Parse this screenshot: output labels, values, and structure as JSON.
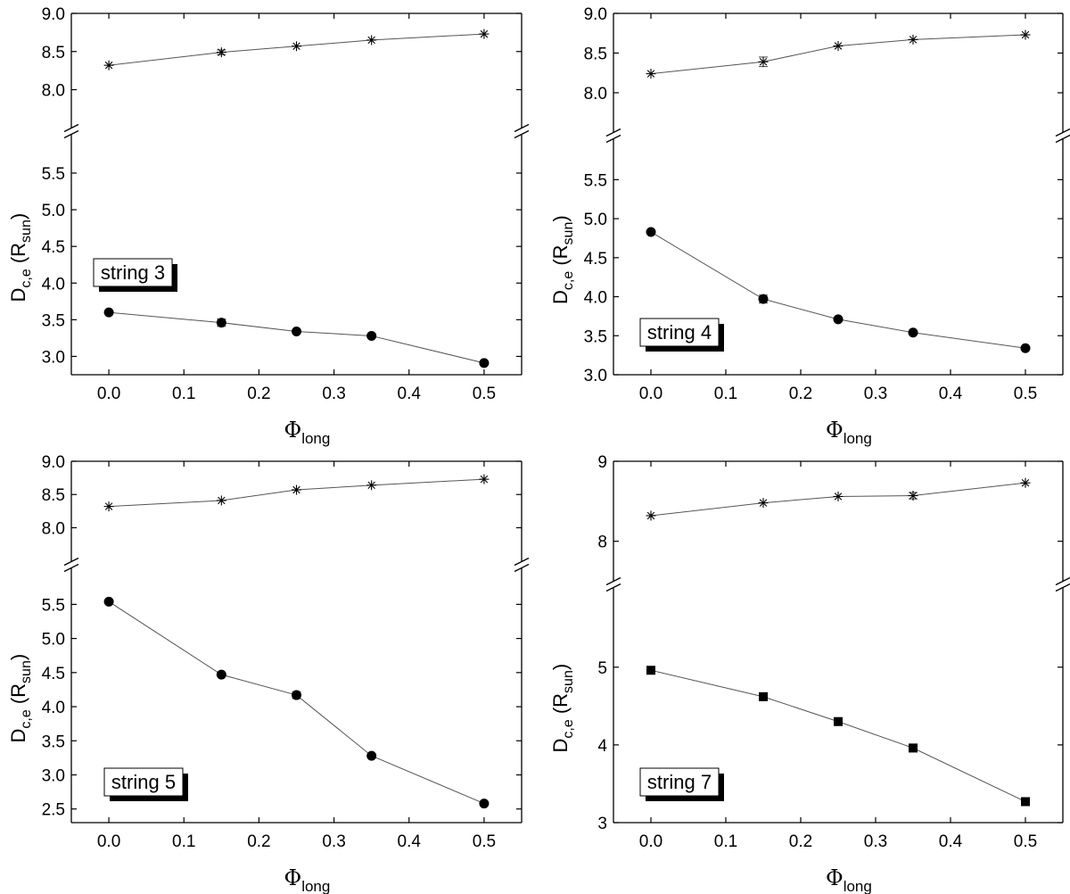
{
  "chart_data": [
    {
      "type": "line",
      "panel_label": "string 3",
      "xlabel_symbol": "Φ",
      "xlabel_sub": "long",
      "ylabel_main": "D",
      "ylabel_sub": "c,e",
      "ylabel_unit_open": " (R",
      "ylabel_unit_sub": "sun",
      "ylabel_unit_close": ")",
      "xlim": [
        -0.05,
        0.55
      ],
      "x_ticks": [
        "0.0",
        "0.1",
        "0.2",
        "0.3",
        "0.4",
        "0.5"
      ],
      "axis_break": true,
      "y_upper": {
        "ylim": [
          7.55,
          9.0
        ],
        "ticks": [
          "8.0",
          "8.5",
          "9.0"
        ]
      },
      "y_lower": {
        "ylim": [
          2.75,
          5.95
        ],
        "ticks": [
          "3.0",
          "3.5",
          "4.0",
          "4.5",
          "5.0",
          "5.5"
        ]
      },
      "x": [
        0.0,
        0.15,
        0.25,
        0.35,
        0.5
      ],
      "series": [
        {
          "marker": "star",
          "values": [
            8.32,
            8.49,
            8.57,
            8.65,
            8.73
          ],
          "errors": [
            0,
            0.03,
            0,
            0,
            0
          ]
        },
        {
          "marker": "circle",
          "values": [
            3.6,
            3.46,
            3.34,
            3.28,
            2.91
          ],
          "errors": [
            0,
            0.05,
            0,
            0,
            0
          ]
        }
      ]
    },
    {
      "type": "line",
      "panel_label": "string 4",
      "xlabel_symbol": "Φ",
      "xlabel_sub": "long",
      "ylabel_main": "D",
      "ylabel_sub": "c,e",
      "ylabel_unit_open": " (R",
      "ylabel_unit_sub": "sun",
      "ylabel_unit_close": ")",
      "xlim": [
        -0.05,
        0.55
      ],
      "x_ticks": [
        "0.0",
        "0.1",
        "0.2",
        "0.3",
        "0.4",
        "0.5"
      ],
      "axis_break": true,
      "y_upper": {
        "ylim": [
          7.55,
          9.0
        ],
        "ticks": [
          "8.0",
          "8.5",
          "9.0"
        ]
      },
      "y_lower": {
        "ylim": [
          3.0,
          5.95
        ],
        "ticks": [
          "3.0",
          "3.5",
          "4.0",
          "4.5",
          "5.0",
          "5.5"
        ]
      },
      "x": [
        0.0,
        0.15,
        0.25,
        0.35,
        0.5
      ],
      "series": [
        {
          "marker": "star",
          "values": [
            8.24,
            8.39,
            8.59,
            8.67,
            8.73
          ],
          "errors": [
            0,
            0.06,
            0,
            0,
            0
          ]
        },
        {
          "marker": "circle",
          "values": [
            4.83,
            3.97,
            3.71,
            3.54,
            3.34
          ],
          "errors": [
            0,
            0.05,
            0,
            0,
            0
          ]
        }
      ]
    },
    {
      "type": "line",
      "panel_label": "string 5",
      "xlabel_symbol": "Φ",
      "xlabel_sub": "long",
      "ylabel_main": "D",
      "ylabel_sub": "c,e",
      "ylabel_unit_open": " (R",
      "ylabel_unit_sub": "sun",
      "ylabel_unit_close": ")",
      "xlim": [
        -0.05,
        0.55
      ],
      "x_ticks": [
        "0.0",
        "0.1",
        "0.2",
        "0.3",
        "0.4",
        "0.5"
      ],
      "axis_break": true,
      "y_upper": {
        "ylim": [
          7.55,
          9.0
        ],
        "ticks": [
          "8.0",
          "8.5",
          "9.0"
        ]
      },
      "y_lower": {
        "ylim": [
          2.3,
          5.95
        ],
        "ticks": [
          "2.5",
          "3.0",
          "3.5",
          "4.0",
          "4.5",
          "5.0",
          "5.5"
        ]
      },
      "x": [
        0.0,
        0.15,
        0.25,
        0.35,
        0.5
      ],
      "series": [
        {
          "marker": "star",
          "values": [
            8.32,
            8.41,
            8.57,
            8.64,
            8.73
          ],
          "errors": [
            0,
            0,
            0,
            0,
            0
          ]
        },
        {
          "marker": "circle",
          "values": [
            5.54,
            4.47,
            4.17,
            3.28,
            2.58
          ],
          "errors": [
            0,
            0,
            0.05,
            0,
            0
          ]
        }
      ]
    },
    {
      "type": "line",
      "panel_label": "string 7",
      "xlabel_symbol": "Φ",
      "xlabel_sub": "long",
      "ylabel_main": "D",
      "ylabel_sub": "c,e",
      "ylabel_unit_open": " (R",
      "ylabel_unit_sub": "sun",
      "ylabel_unit_close": ")",
      "xlim": [
        -0.05,
        0.55
      ],
      "x_ticks": [
        "0.0",
        "0.1",
        "0.2",
        "0.3",
        "0.4",
        "0.5"
      ],
      "axis_break": true,
      "y_upper": {
        "ylim": [
          7.55,
          9.0
        ],
        "ticks": [
          "8",
          "9"
        ]
      },
      "y_lower": {
        "ylim": [
          3.0,
          5.95
        ],
        "ticks": [
          "3",
          "4",
          "5"
        ]
      },
      "x": [
        0.0,
        0.15,
        0.25,
        0.35,
        0.5
      ],
      "series": [
        {
          "marker": "star",
          "values": [
            8.32,
            8.48,
            8.56,
            8.57,
            8.73
          ],
          "errors": [
            0,
            0,
            0,
            0.04,
            0
          ]
        },
        {
          "marker": "square",
          "values": [
            4.96,
            4.62,
            4.3,
            3.96,
            3.27
          ],
          "errors": [
            0,
            0,
            0,
            0.05,
            0
          ]
        }
      ]
    }
  ]
}
